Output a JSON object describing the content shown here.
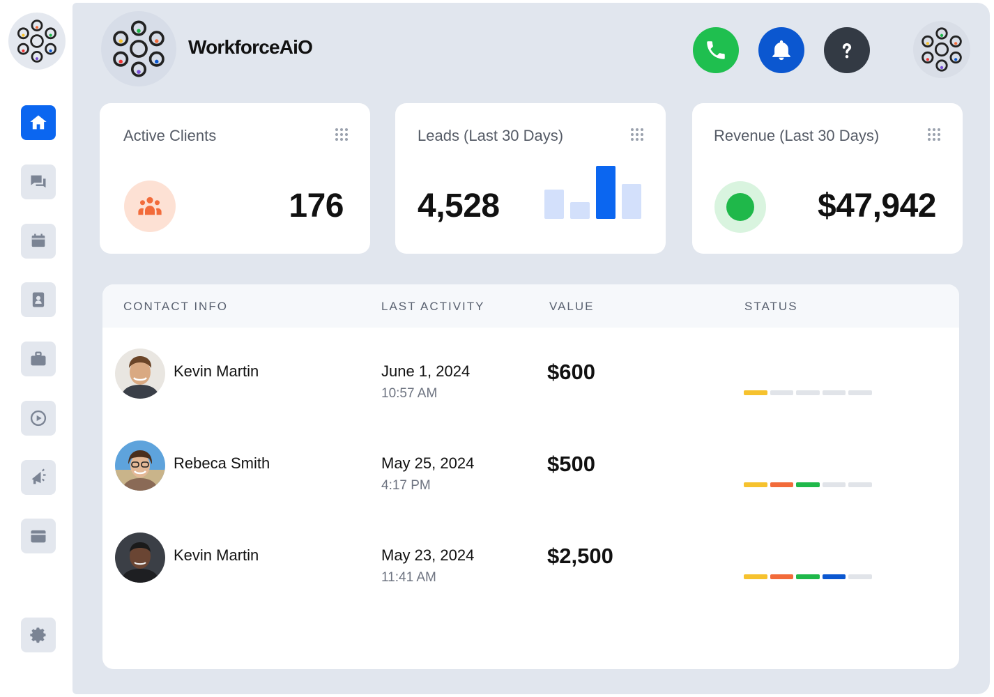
{
  "app": {
    "name": "WorkforceAiO"
  },
  "sidebar": {
    "items": [
      {
        "icon": "home-icon",
        "active": true
      },
      {
        "icon": "chat-icon",
        "active": false
      },
      {
        "icon": "calendar-icon",
        "active": false
      },
      {
        "icon": "contacts-icon",
        "active": false
      },
      {
        "icon": "briefcase-icon",
        "active": false
      },
      {
        "icon": "play-icon",
        "active": false
      },
      {
        "icon": "megaphone-icon",
        "active": false
      },
      {
        "icon": "window-icon",
        "active": false
      },
      {
        "icon": "gear-icon",
        "active": false
      }
    ]
  },
  "header": {
    "buttons": [
      {
        "icon": "phone-icon",
        "color": "#1fbf4f"
      },
      {
        "icon": "bell-icon",
        "color": "#0b57d0"
      },
      {
        "icon": "help-icon",
        "color": "#333a44"
      }
    ]
  },
  "cards": {
    "active_clients": {
      "title": "Active Clients",
      "value": "176",
      "icon": "people-icon",
      "accent": "#f26b3a"
    },
    "leads": {
      "title": "Leads (Last 30 Days)",
      "value": "4,528",
      "icon": "bar-chart-icon",
      "bars": [
        0.55,
        0.32,
        1.0,
        0.66
      ],
      "highlight_index": 2
    },
    "revenue": {
      "title": "Revenue (Last 30 Days)",
      "value": "$47,942",
      "icon": "status-dot-icon",
      "accent": "#1fb84a"
    }
  },
  "table": {
    "headers": {
      "contact": "CONTACT INFO",
      "activity": "LAST ACTIVITY",
      "value": "VALUE",
      "status": "STATUS"
    },
    "rows": [
      {
        "name": "Kevin Martin",
        "date": "June 1, 2024",
        "time": "10:57 AM",
        "value": "$600",
        "status_filled": 1
      },
      {
        "name": "Rebeca Smith",
        "date": "May 25, 2024",
        "time": "4:17 PM",
        "value": "$500",
        "status_filled": 3
      },
      {
        "name": "Kevin Martin",
        "date": "May 23, 2024",
        "time": "11:41 AM",
        "value": "$2,500",
        "status_filled": 4
      }
    ]
  },
  "colors": {
    "primary": "#0b66f0",
    "status_segments": [
      "#f6c22e",
      "#f26b3a",
      "#1fb84a",
      "#0b57d0",
      "#e1e4e9"
    ]
  }
}
